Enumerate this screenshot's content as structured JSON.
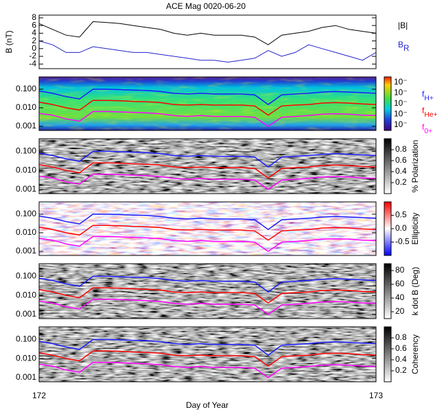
{
  "chart_data": [
    {
      "type": "line",
      "title": "ACE Mag 0020-06-20",
      "ylabel": "B (nT)",
      "x": [
        172.0,
        172.04,
        172.08,
        172.12,
        172.16,
        172.2,
        172.24,
        172.28,
        172.32,
        172.36,
        172.4,
        172.44,
        172.48,
        172.52,
        172.56,
        172.6,
        172.64,
        172.68,
        172.72,
        172.76,
        172.8,
        172.84,
        172.88,
        172.92,
        172.96,
        173.0
      ],
      "xlim": [
        172,
        173
      ],
      "ylim": [
        -5.2,
        8.7
      ],
      "yticks": [
        8,
        6,
        4,
        2,
        0,
        -2,
        -4
      ],
      "series": [
        {
          "name": "|B|",
          "color": "#000000",
          "values": [
            6.5,
            5,
            3.5,
            3,
            7,
            6.8,
            6.5,
            6,
            5.5,
            5,
            4,
            3.5,
            4,
            3.5,
            3.5,
            3.5,
            3,
            1,
            3.5,
            4,
            4.5,
            5.5,
            6,
            5,
            4.5,
            4
          ]
        },
        {
          "name": "B",
          "subscript": "R",
          "color": "#2222cc",
          "values": [
            2,
            1,
            -1,
            -1,
            0.5,
            0,
            -0.5,
            -1,
            -1,
            -1.5,
            -2,
            -2.5,
            -3,
            -3,
            -3.5,
            -3,
            -2.5,
            -0.5,
            -2,
            -1,
            1,
            0,
            -1,
            -2,
            -3,
            -1
          ]
        }
      ]
    },
    {
      "type": "spectrogram",
      "log_y": true,
      "ylim": [
        0.0006,
        0.46
      ],
      "yticks": [
        {
          "value": 0.1,
          "label": "0.100"
        },
        {
          "value": 0.01,
          "label": "0.010"
        },
        {
          "value": 0.001,
          "label": "0.001"
        }
      ],
      "colorbar_labels": [
        "10⁻",
        "10⁻",
        "10⁻",
        "10⁻",
        "10⁻"
      ],
      "series": [
        {
          "name": "f",
          "subscript": "H+",
          "color": "#1a1aff",
          "values": [
            0.08,
            0.06,
            0.04,
            0.03,
            0.1,
            0.1,
            0.095,
            0.09,
            0.085,
            0.075,
            0.06,
            0.055,
            0.06,
            0.055,
            0.055,
            0.055,
            0.05,
            0.015,
            0.05,
            0.055,
            0.06,
            0.07,
            0.075,
            0.07,
            0.065,
            0.06
          ]
        },
        {
          "name": "f",
          "subscript": "He+",
          "color": "#ff0000",
          "values": [
            0.02,
            0.015,
            0.01,
            0.0075,
            0.025,
            0.025,
            0.024,
            0.022,
            0.021,
            0.019,
            0.015,
            0.014,
            0.015,
            0.014,
            0.014,
            0.014,
            0.0125,
            0.004,
            0.0125,
            0.014,
            0.015,
            0.018,
            0.019,
            0.018,
            0.016,
            0.015
          ]
        },
        {
          "name": "f",
          "subscript": "0+",
          "color": "#ff00ff",
          "values": [
            0.005,
            0.004,
            0.0025,
            0.0019,
            0.0063,
            0.0063,
            0.006,
            0.0056,
            0.0053,
            0.0047,
            0.0038,
            0.0034,
            0.0038,
            0.0034,
            0.0034,
            0.0034,
            0.0031,
            0.001,
            0.0031,
            0.0034,
            0.0038,
            0.0045,
            0.0047,
            0.0045,
            0.004,
            0.0038
          ]
        }
      ]
    },
    {
      "type": "spectrogram",
      "log_y": true,
      "ylim": [
        0.0006,
        0.46
      ],
      "yticks": [
        {
          "value": 0.1,
          "label": "0.100"
        },
        {
          "value": 0.01,
          "label": "0.010"
        },
        {
          "value": 0.001,
          "label": "0.001"
        }
      ],
      "colorbar_title": "% Polarization",
      "clim": [
        0,
        1
      ],
      "colorbar_ticks": [
        0.8,
        0.6,
        0.4,
        0.2
      ]
    },
    {
      "type": "spectrogram",
      "log_y": true,
      "ylim": [
        0.0006,
        0.46
      ],
      "yticks": [
        {
          "value": 0.1,
          "label": "0.100"
        },
        {
          "value": 0.01,
          "label": "0.010"
        },
        {
          "value": 0.001,
          "label": "0.001"
        }
      ],
      "colorbar_title": "Ellipticity",
      "clim": [
        -1,
        1
      ],
      "colorbar_ticks": [
        0.5,
        {
          "value": 0,
          "label": "0.0"
        },
        -0.5
      ]
    },
    {
      "type": "spectrogram",
      "log_y": true,
      "ylim": [
        0.0006,
        0.46
      ],
      "yticks": [
        {
          "value": 0.1,
          "label": "0.100"
        },
        {
          "value": 0.01,
          "label": "0.010"
        },
        {
          "value": 0.001,
          "label": "0.001"
        }
      ],
      "colorbar_title": "k dot B (Deg)",
      "clim": [
        10,
        90
      ],
      "colorbar_ticks": [
        80,
        60,
        40,
        20
      ]
    },
    {
      "type": "spectrogram",
      "log_y": true,
      "ylim": [
        0.0006,
        0.46
      ],
      "yticks": [
        {
          "value": 0.1,
          "label": "0.100"
        },
        {
          "value": 0.01,
          "label": "0.010"
        },
        {
          "value": 0.001,
          "label": "0.001"
        }
      ],
      "colorbar_title": "Coherency",
      "clim": [
        0,
        1
      ],
      "colorbar_ticks": [
        0.8,
        0.6,
        0.4,
        0.2
      ],
      "xlabel": "Day of Year",
      "xticks": [
        172,
        173
      ]
    }
  ]
}
